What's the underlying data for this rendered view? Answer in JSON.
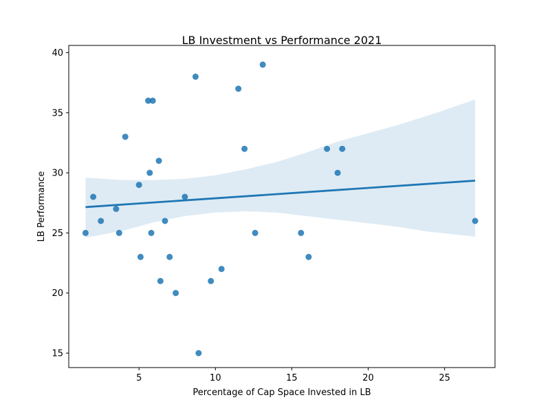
{
  "chart_data": {
    "type": "scatter",
    "title": "LB Investment vs Performance 2021",
    "xlabel": "Percentage of Cap Space Invested in LB",
    "ylabel": "LB Performance",
    "xlim": [
      0.4,
      28.3
    ],
    "ylim": [
      13.8,
      40.6
    ],
    "xticks": [
      5,
      10,
      15,
      20,
      25
    ],
    "yticks": [
      15,
      20,
      25,
      30,
      35,
      40
    ],
    "grid": false,
    "legend": "none",
    "point_color": "#1f77b4",
    "line_color": "#1f77b4",
    "band_color": "#1f77b4",
    "points": [
      {
        "x": 1.5,
        "y": 25
      },
      {
        "x": 2.0,
        "y": 28
      },
      {
        "x": 2.5,
        "y": 26
      },
      {
        "x": 3.5,
        "y": 27
      },
      {
        "x": 3.7,
        "y": 25
      },
      {
        "x": 4.1,
        "y": 33
      },
      {
        "x": 5.0,
        "y": 29
      },
      {
        "x": 5.1,
        "y": 23
      },
      {
        "x": 5.6,
        "y": 36
      },
      {
        "x": 5.7,
        "y": 30
      },
      {
        "x": 5.8,
        "y": 25
      },
      {
        "x": 5.9,
        "y": 36
      },
      {
        "x": 6.3,
        "y": 31
      },
      {
        "x": 6.4,
        "y": 21
      },
      {
        "x": 6.7,
        "y": 26
      },
      {
        "x": 7.0,
        "y": 23
      },
      {
        "x": 7.4,
        "y": 20
      },
      {
        "x": 8.0,
        "y": 28
      },
      {
        "x": 8.7,
        "y": 38
      },
      {
        "x": 8.9,
        "y": 15
      },
      {
        "x": 9.7,
        "y": 21
      },
      {
        "x": 10.4,
        "y": 22
      },
      {
        "x": 11.5,
        "y": 37
      },
      {
        "x": 11.9,
        "y": 32
      },
      {
        "x": 12.6,
        "y": 25
      },
      {
        "x": 13.1,
        "y": 39
      },
      {
        "x": 15.6,
        "y": 25
      },
      {
        "x": 16.1,
        "y": 23
      },
      {
        "x": 17.3,
        "y": 32
      },
      {
        "x": 18.0,
        "y": 30
      },
      {
        "x": 18.3,
        "y": 32
      },
      {
        "x": 27.0,
        "y": 26
      }
    ],
    "regression": {
      "x": [
        1.5,
        27.0
      ],
      "y": [
        27.15,
        29.35
      ]
    },
    "confidence_band": [
      {
        "x": 1.5,
        "lower": 24.6,
        "upper": 29.6
      },
      {
        "x": 4.0,
        "lower": 25.2,
        "upper": 29.4
      },
      {
        "x": 6.0,
        "lower": 25.9,
        "upper": 29.4
      },
      {
        "x": 8.0,
        "lower": 26.4,
        "upper": 29.5
      },
      {
        "x": 10.0,
        "lower": 26.7,
        "upper": 29.8
      },
      {
        "x": 12.0,
        "lower": 26.8,
        "upper": 30.3
      },
      {
        "x": 14.0,
        "lower": 26.7,
        "upper": 30.9
      },
      {
        "x": 16.0,
        "lower": 26.4,
        "upper": 31.7
      },
      {
        "x": 18.0,
        "lower": 26.1,
        "upper": 32.6
      },
      {
        "x": 20.0,
        "lower": 25.8,
        "upper": 33.3
      },
      {
        "x": 22.0,
        "lower": 25.5,
        "upper": 34.0
      },
      {
        "x": 24.0,
        "lower": 25.1,
        "upper": 34.8
      },
      {
        "x": 27.0,
        "lower": 24.7,
        "upper": 36.1
      }
    ]
  }
}
